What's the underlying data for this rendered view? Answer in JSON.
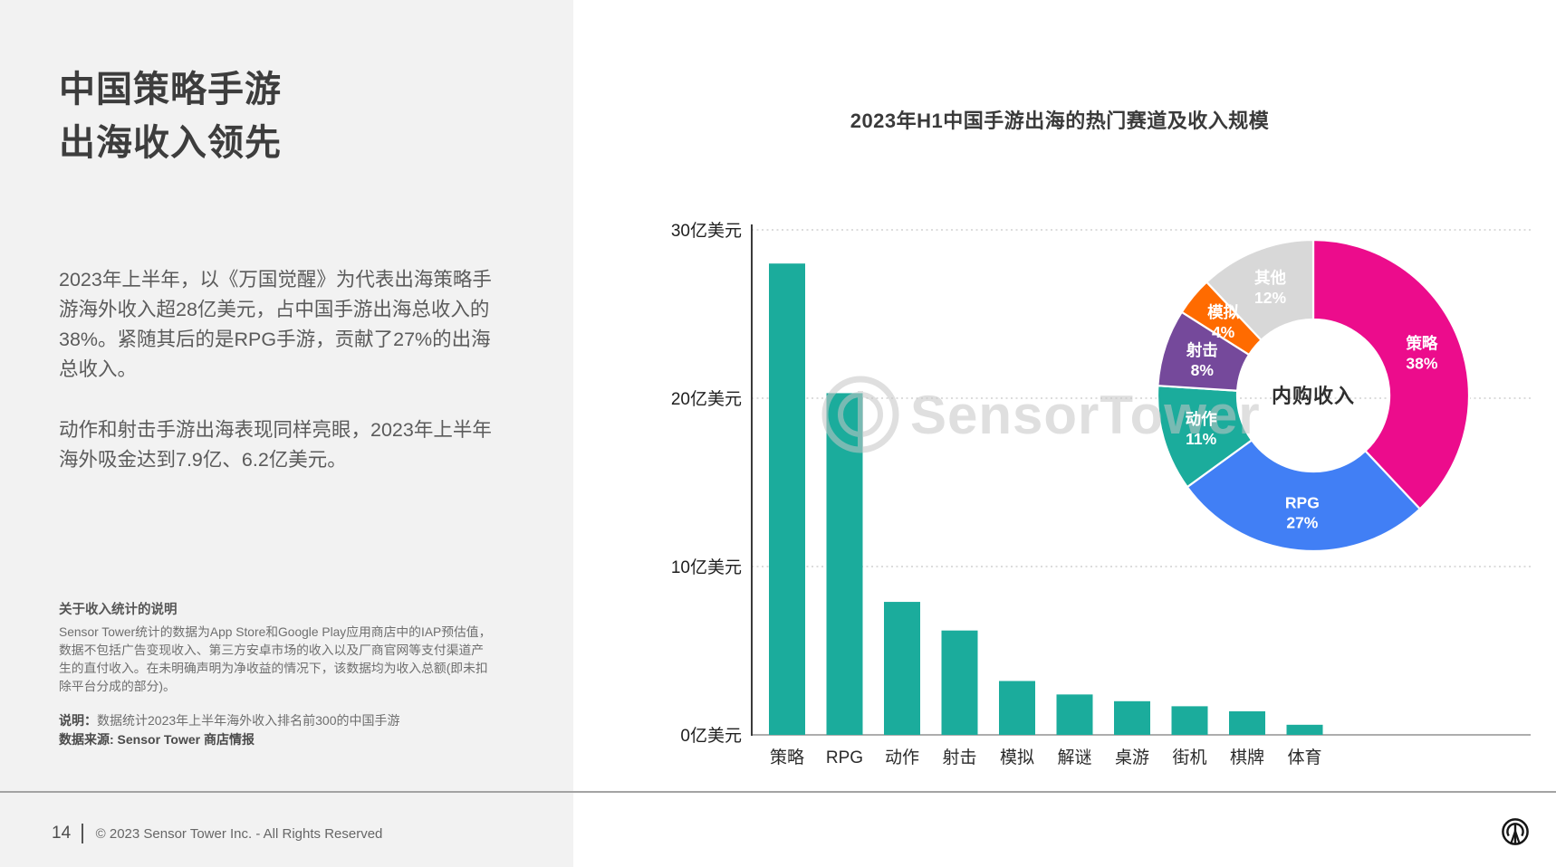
{
  "page": {
    "number": "14",
    "copyright": "© 2023 Sensor Tower Inc. - All Rights Reserved"
  },
  "left": {
    "title_line1": "中国策略手游",
    "title_line2": "出海收入领先",
    "paragraph1": "2023年上半年，以《万国觉醒》为代表出海策略手游海外收入超28亿美元，占中国手游出海总收入的38%。紧随其后的是RPG手游，贡献了27%的出海总收入。",
    "paragraph2": "动作和射击手游出海表现同样亮眼，2023年上半年海外吸金达到7.9亿、6.2亿美元。",
    "note_heading": "关于收入统计的说明",
    "note_body": "Sensor Tower统计的数据为App Store和Google Play应用商店中的IAP预估值，数据不包括广告变现收入、第三方安卓市场的收入以及厂商官网等支付渠道产生的直付收入。在未明确声明为净收益的情况下，该数据均为收入总额(即未扣除平台分成的部分)。",
    "note2_label": "说明：",
    "note2_text": "数据统计2023年上半年海外收入排名前300的中国手游",
    "source": "数据来源: Sensor Tower 商店情报"
  },
  "watermark": {
    "text": "SensorTower"
  },
  "chart_data": [
    {
      "type": "bar",
      "title": "2023年H1中国手游出海的热门赛道及收入规模",
      "categories": [
        "策略",
        "RPG",
        "动作",
        "射击",
        "模拟",
        "解谜",
        "桌游",
        "街机",
        "棋牌",
        "体育"
      ],
      "values": [
        28,
        20.3,
        7.9,
        6.2,
        3.2,
        2.4,
        2.0,
        1.7,
        1.4,
        0.6
      ],
      "unit": "亿美元",
      "ylabel": "",
      "xlabel": "",
      "ylim": [
        0,
        30
      ],
      "y_ticks": [
        {
          "value": 0,
          "label": "0亿美元"
        },
        {
          "value": 10,
          "label": "10亿美元"
        },
        {
          "value": 20,
          "label": "20亿美元"
        },
        {
          "value": 30,
          "label": "30亿美元"
        }
      ],
      "grid": "horizontal-dotted",
      "bar_color": "#1BAC9C"
    },
    {
      "type": "pie",
      "subtype": "donut",
      "center_label": "内购收入",
      "slices": [
        {
          "label": "策略",
          "pct": 38,
          "color": "#EC0C8C"
        },
        {
          "label": "RPG",
          "pct": 27,
          "color": "#417FF5"
        },
        {
          "label": "动作",
          "pct": 11,
          "color": "#1BAC9C"
        },
        {
          "label": "射击",
          "pct": 8,
          "color": "#75499B"
        },
        {
          "label": "模拟",
          "pct": 4,
          "color": "#FF6B00"
        },
        {
          "label": "其他",
          "pct": 12,
          "color": "#D8D8D8"
        }
      ],
      "label_format": "{label} {pct}%",
      "legend": "none"
    }
  ],
  "colors": {
    "left_panel_bg": "#F2F2F2",
    "text_dark": "#3D3D3D",
    "text_body": "#5B5B5B",
    "axis": "#3A3A3A",
    "gridline": "#C8C8C8",
    "divider": "#A3A3A3"
  }
}
